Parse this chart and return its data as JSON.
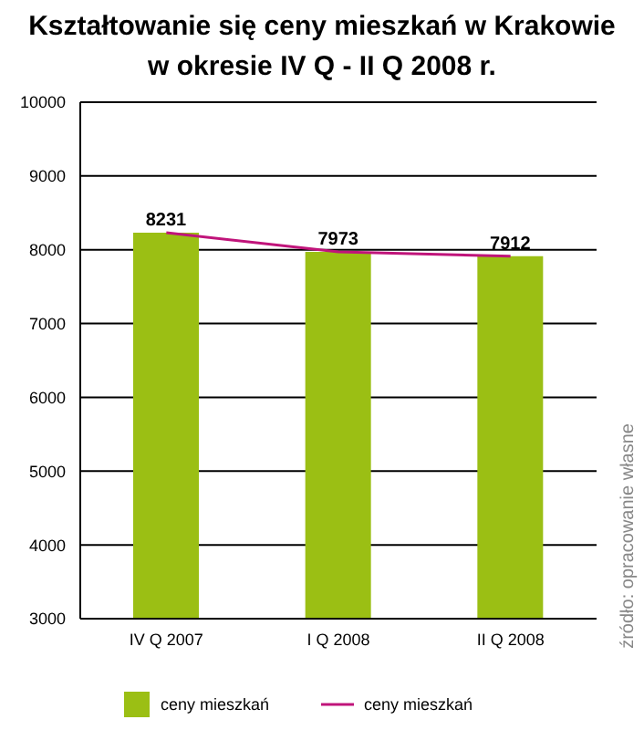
{
  "chart_data": {
    "type": "bar",
    "title": "Kształtowanie się ceny mieszkań w Krakowie",
    "subtitle": "w okresie IV Q - II Q 2008 r.",
    "categories": [
      "IV Q 2007",
      "I Q 2008",
      "II Q 2008"
    ],
    "series": [
      {
        "name": "ceny mieszkań",
        "color": "#9bbf14",
        "values": [
          8231,
          7973,
          7912
        ],
        "value_labels": [
          "8231",
          "7973",
          "7912"
        ]
      },
      {
        "name": "ceny mieszkań",
        "type": "line",
        "color": "#c0147a",
        "values": [
          8231,
          7973,
          7912
        ],
        "marker": "none"
      }
    ],
    "ylim": [
      3000,
      10000
    ],
    "yticks": [
      3000,
      4000,
      5000,
      6000,
      7000,
      8000,
      9000,
      10000
    ],
    "grid": "y",
    "legend": "bottom",
    "annotations": [
      "źródło: opracowanie własne"
    ]
  }
}
